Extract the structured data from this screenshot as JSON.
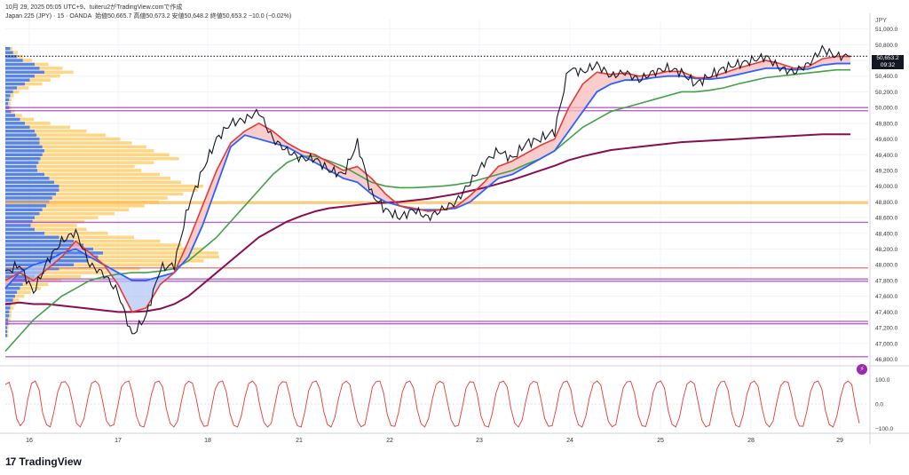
{
  "header": {
    "line": "10月 29, 2025 05:05 UTC+9、tuiteru2がTradingView.comで作成",
    "instrument": "Japan 225 (JPY) · 15 · OANDA",
    "ohlc": "始値50,665.7 高値50,673.2 安値50,648.2 終値50,653.2 −10.0 (−0.02%)"
  },
  "currency_label": "JPY",
  "last_price": {
    "value": "50,653.2",
    "countdown": "09:32"
  },
  "branding": {
    "logo_text": "TradingView",
    "logo_mark": "17"
  },
  "colors": {
    "candle": "#131722",
    "ema_fast": "#e53935",
    "ema_mid": "#2962ff",
    "sma_green": "#43a047",
    "sma_long": "#880e4f",
    "fill_up": "#f8bbbb",
    "fill_down": "#b3c7f5",
    "level_purple": "#ab47bc",
    "level_orange": "#ffb74d",
    "level_red": "#e57373",
    "vp_up": "#ffcc66",
    "vp_down": "#3d6fd9",
    "oscillator": "#e53935"
  },
  "chart_data": [
    {
      "type": "line",
      "name": "price",
      "x_tick_labels": [
        "16",
        "17",
        "18",
        "21",
        "22",
        "23",
        "24",
        "25",
        "28",
        "29"
      ],
      "y_tick_labels": [
        "51,000.0",
        "50,800.0",
        "50,600.0",
        "50,400.0",
        "50,200.0",
        "50,000.0",
        "49,800.0",
        "49,600.0",
        "49,400.0",
        "49,200.0",
        "49,000.0",
        "48,800.0",
        "48,600.0",
        "48,400.0",
        "48,200.0",
        "48,000.0",
        "47,800.0",
        "47,600.0",
        "47,400.0",
        "47,200.0",
        "47,000.0",
        "46,800.0"
      ],
      "ylim": [
        46760,
        51120
      ],
      "xlim": [
        15.0,
        29.25
      ],
      "x": [
        15.0,
        15.3,
        15.6,
        16.0,
        16.3,
        16.6,
        16.9,
        17.1,
        17.35,
        17.55,
        17.7,
        17.9,
        18.1,
        18.3,
        18.5,
        18.7,
        19.0,
        19.3,
        19.7,
        20.0,
        20.3,
        20.5,
        20.7,
        21.0,
        21.2,
        21.4,
        21.6,
        21.8,
        22.0,
        22.2,
        22.4,
        22.6,
        22.8,
        23.0,
        23.2,
        23.4,
        23.6,
        23.9,
        24.2,
        24.5,
        24.8,
        25.0,
        25.2,
        25.4,
        25.6,
        25.8,
        26.0,
        26.3,
        26.6,
        26.9,
        27.2,
        27.5,
        27.8,
        28.0,
        28.2,
        28.4,
        28.6,
        28.8,
        29.0,
        29.15,
        29.25
      ],
      "series": [
        {
          "key": "close",
          "values": [
            47900,
            48000,
            47650,
            48050,
            48300,
            48420,
            48000,
            47880,
            47650,
            47100,
            47350,
            47950,
            48000,
            48750,
            49200,
            49600,
            49800,
            49850,
            49950,
            49600,
            49450,
            49350,
            49350,
            49200,
            49150,
            49550,
            48900,
            48700,
            48600,
            48700,
            48600,
            48700,
            48800,
            49050,
            49300,
            49450,
            49350,
            49550,
            49600,
            49700,
            50500,
            50450,
            50550,
            50400,
            50450,
            50350,
            50450,
            50500,
            50450,
            50300,
            50400,
            50500,
            50550,
            50600,
            50650,
            50500,
            50450,
            50550,
            50750,
            50653,
            50653
          ]
        },
        {
          "key": "ema_fast",
          "values": [
            47800,
            47900,
            47800,
            47950,
            48100,
            48300,
            48150,
            48000,
            47750,
            47400,
            47450,
            47750,
            47900,
            48300,
            48750,
            49200,
            49550,
            49700,
            49800,
            49700,
            49550,
            49450,
            49400,
            49300,
            49200,
            49250,
            49100,
            48900,
            48750,
            48720,
            48680,
            48700,
            48740,
            48880,
            49050,
            49250,
            49320,
            49420,
            49520,
            49600,
            50000,
            50300,
            50450,
            50420,
            50440,
            50400,
            50420,
            50460,
            50460,
            50380,
            50380,
            50440,
            50500,
            50550,
            50600,
            50560,
            50500,
            50520,
            50620,
            50650,
            50650
          ]
        },
        {
          "key": "ema_mid",
          "values": [
            47700,
            47900,
            48000,
            48050,
            48150,
            48200,
            48100,
            48000,
            47900,
            47800,
            47800,
            47850,
            47900,
            48100,
            48500,
            49000,
            49500,
            49650,
            49600,
            49550,
            49500,
            49400,
            49300,
            49200,
            49100,
            49050,
            48900,
            48800,
            48750,
            48700,
            48700,
            48700,
            48720,
            48800,
            48950,
            49100,
            49150,
            49250,
            49350,
            49450,
            49700,
            49950,
            50200,
            50300,
            50350,
            50350,
            50380,
            50400,
            50400,
            50370,
            50360,
            50380,
            50420,
            50460,
            50500,
            50500,
            50480,
            50490,
            50540,
            50560,
            50560
          ]
        },
        {
          "key": "sma_green",
          "values": [
            46900,
            47100,
            47300,
            47450,
            47600,
            47700,
            47800,
            47850,
            47880,
            47900,
            47900,
            47920,
            47950,
            48050,
            48200,
            48350,
            48550,
            48750,
            48950,
            49150,
            49300,
            49380,
            49380,
            49320,
            49250,
            49150,
            49050,
            49000,
            48980,
            48980,
            48990,
            49000,
            49020,
            49050,
            49100,
            49150,
            49200,
            49280,
            49350,
            49450,
            49600,
            49750,
            49850,
            49950,
            50000,
            50050,
            50100,
            50150,
            50200,
            50200,
            50220,
            50250,
            50300,
            50340,
            50380,
            50400,
            50420,
            50440,
            50460,
            50480,
            50480
          ]
        },
        {
          "key": "sma_long",
          "values": [
            47500,
            47520,
            47500,
            47500,
            47480,
            47460,
            47440,
            47420,
            47400,
            47400,
            47410,
            47440,
            47500,
            47600,
            47750,
            47900,
            48050,
            48200,
            48350,
            48450,
            48550,
            48620,
            48680,
            48720,
            48740,
            48760,
            48780,
            48790,
            48800,
            48820,
            48840,
            48870,
            48900,
            48940,
            48980,
            49030,
            49080,
            49140,
            49200,
            49260,
            49330,
            49380,
            49420,
            49460,
            49480,
            49500,
            49520,
            49540,
            49560,
            49570,
            49580,
            49590,
            49600,
            49610,
            49620,
            49630,
            49640,
            49650,
            49660,
            49660,
            49660
          ]
        }
      ],
      "levels": [
        {
          "value": 50000,
          "kind": "purple"
        },
        {
          "value": 49960,
          "kind": "purple"
        },
        {
          "value": 48800,
          "kind": "orange"
        },
        {
          "value": 48780,
          "kind": "orange"
        },
        {
          "value": 48540,
          "kind": "purple"
        },
        {
          "value": 47960,
          "kind": "red"
        },
        {
          "value": 47820,
          "kind": "purple"
        },
        {
          "value": 47790,
          "kind": "purple"
        },
        {
          "value": 47280,
          "kind": "purple"
        },
        {
          "value": 47250,
          "kind": "purple"
        },
        {
          "value": 46830,
          "kind": "purple"
        }
      ],
      "last_close_line": 50653.2,
      "volume_profile": {
        "price_step": 50,
        "rows": [
          [
            50750,
            0.05,
            0.02
          ],
          [
            50700,
            0.08,
            0.04
          ],
          [
            50650,
            0.12,
            0.05
          ],
          [
            50600,
            0.18,
            0.08
          ],
          [
            50550,
            0.3,
            0.12
          ],
          [
            50500,
            0.35,
            0.2
          ],
          [
            50450,
            0.4,
            0.25
          ],
          [
            50400,
            0.3,
            0.22
          ],
          [
            50350,
            0.25,
            0.18
          ],
          [
            50300,
            0.2,
            0.15
          ],
          [
            50250,
            0.12,
            0.1
          ],
          [
            50200,
            0.08,
            0.05
          ],
          [
            50150,
            0.05,
            0.03
          ],
          [
            50100,
            0.04,
            0.02
          ],
          [
            50050,
            0.03,
            0.02
          ],
          [
            50000,
            0.04,
            0.02
          ],
          [
            49950,
            0.06,
            0.03
          ],
          [
            49900,
            0.1,
            0.06
          ],
          [
            49850,
            0.15,
            0.12
          ],
          [
            49800,
            0.2,
            0.22
          ],
          [
            49750,
            0.25,
            0.35
          ],
          [
            49700,
            0.3,
            0.45
          ],
          [
            49650,
            0.32,
            0.6
          ],
          [
            49600,
            0.35,
            0.7
          ],
          [
            49550,
            0.35,
            0.8
          ],
          [
            49500,
            0.38,
            0.9
          ],
          [
            49450,
            0.4,
            0.95
          ],
          [
            49400,
            0.38,
            1.1
          ],
          [
            49350,
            0.36,
            1.2
          ],
          [
            49300,
            0.34,
            1.0
          ],
          [
            49250,
            0.32,
            0.85
          ],
          [
            49200,
            0.33,
            0.9
          ],
          [
            49150,
            0.4,
            1.0
          ],
          [
            49100,
            0.45,
            1.05
          ],
          [
            49050,
            0.5,
            1.1
          ],
          [
            49000,
            0.55,
            1.25
          ],
          [
            48950,
            0.55,
            1.2
          ],
          [
            48900,
            0.52,
            1.1
          ],
          [
            48850,
            0.48,
            1.0
          ],
          [
            48800,
            0.45,
            0.95
          ],
          [
            48750,
            0.42,
            0.85
          ],
          [
            48700,
            0.38,
            0.75
          ],
          [
            48650,
            0.35,
            0.65
          ],
          [
            48600,
            0.3,
            0.55
          ],
          [
            48550,
            0.28,
            0.45
          ],
          [
            48500,
            0.26,
            0.4
          ],
          [
            48450,
            0.3,
            0.45
          ],
          [
            48400,
            0.4,
            0.55
          ],
          [
            48350,
            0.55,
            0.65
          ],
          [
            48300,
            0.7,
            0.75
          ],
          [
            48250,
            0.8,
            0.85
          ],
          [
            48200,
            0.9,
            0.95
          ],
          [
            48150,
            1.0,
            1.0
          ],
          [
            48100,
            0.95,
            1.05
          ],
          [
            48050,
            0.85,
            1.0
          ],
          [
            48000,
            0.7,
            0.9
          ],
          [
            47950,
            0.55,
            0.7
          ],
          [
            47900,
            0.4,
            0.55
          ],
          [
            47850,
            0.3,
            0.4
          ],
          [
            47800,
            0.22,
            0.3
          ],
          [
            47750,
            0.18,
            0.22
          ],
          [
            47700,
            0.15,
            0.18
          ],
          [
            47650,
            0.12,
            0.12
          ],
          [
            47600,
            0.1,
            0.08
          ],
          [
            47550,
            0.08,
            0.05
          ],
          [
            47500,
            0.06,
            0.04
          ],
          [
            47450,
            0.05,
            0.03
          ],
          [
            47400,
            0.04,
            0.02
          ],
          [
            47350,
            0.04,
            0.02
          ],
          [
            47300,
            0.03,
            0.02
          ],
          [
            47250,
            0.03,
            0.01
          ],
          [
            47200,
            0.02,
            0.01
          ],
          [
            47150,
            0.02,
            0.01
          ],
          [
            47100,
            0.02,
            0.01
          ]
        ]
      }
    },
    {
      "type": "line",
      "name": "oscillator",
      "y_tick_labels": [
        "100.0",
        "0.0",
        "−100.0"
      ],
      "ylim": [
        -110,
        110
      ],
      "values": [
        80,
        90,
        40,
        -60,
        -90,
        -70,
        20,
        85,
        95,
        60,
        -40,
        -85,
        -95,
        -30,
        50,
        90,
        92,
        70,
        0,
        -80,
        -95,
        -60,
        20,
        85,
        95,
        80,
        10,
        -70,
        -92,
        -85,
        -10,
        70,
        90,
        95,
        40,
        -50,
        -90,
        -95,
        -40,
        40,
        88,
        95,
        70,
        -20,
        -80,
        -95,
        -70,
        10,
        80,
        94,
        85,
        20,
        -60,
        -92,
        -90,
        -20,
        60,
        90,
        95,
        50,
        -40,
        -88,
        -95,
        -50,
        30,
        85,
        95,
        75,
        -10,
        -75,
        -95,
        -80,
        0,
        75,
        92,
        90,
        30,
        -50,
        -90,
        -95,
        -30,
        55,
        90,
        95,
        60,
        -30,
        -85,
        -95,
        -55,
        25,
        82,
        95,
        80,
        0,
        -70,
        -94,
        -85,
        -10,
        70,
        92,
        95,
        45,
        -45,
        -90,
        -92,
        -35,
        50,
        88,
        95,
        65,
        -25,
        -82,
        -95,
        -60,
        20,
        80,
        94,
        85,
        10,
        -65,
        -93,
        -88,
        -15,
        65,
        92,
        90,
        40,
        -50,
        -90,
        -95,
        -40,
        45,
        88,
        95,
        70,
        -20,
        -80,
        -95,
        -65,
        15,
        78,
        94,
        88,
        20,
        -60,
        -92,
        -90,
        -25,
        55,
        90,
        95,
        60,
        -35,
        -86,
        -95,
        -50,
        30,
        84,
        95,
        78,
        0,
        -72,
        -94,
        -85,
        -5,
        68,
        92,
        93,
        45,
        -48,
        -90,
        -93,
        -38,
        50,
        88,
        95,
        65,
        -28,
        -84,
        -95,
        -55,
        25,
        82,
        95,
        82,
        5,
        -68,
        -94,
        -88,
        -12,
        62,
        91,
        94,
        55,
        -40,
        -88,
        -95,
        -45,
        40,
        86,
        95,
        72,
        -15,
        -78,
        -95,
        -70,
        10,
        75,
        93,
        90,
        28,
        -55,
        -91,
        -92,
        -30,
        52,
        89,
        95,
        62,
        -30,
        -85,
        -95,
        -52,
        28,
        83,
        95,
        80,
        -10,
        -80
      ]
    }
  ]
}
